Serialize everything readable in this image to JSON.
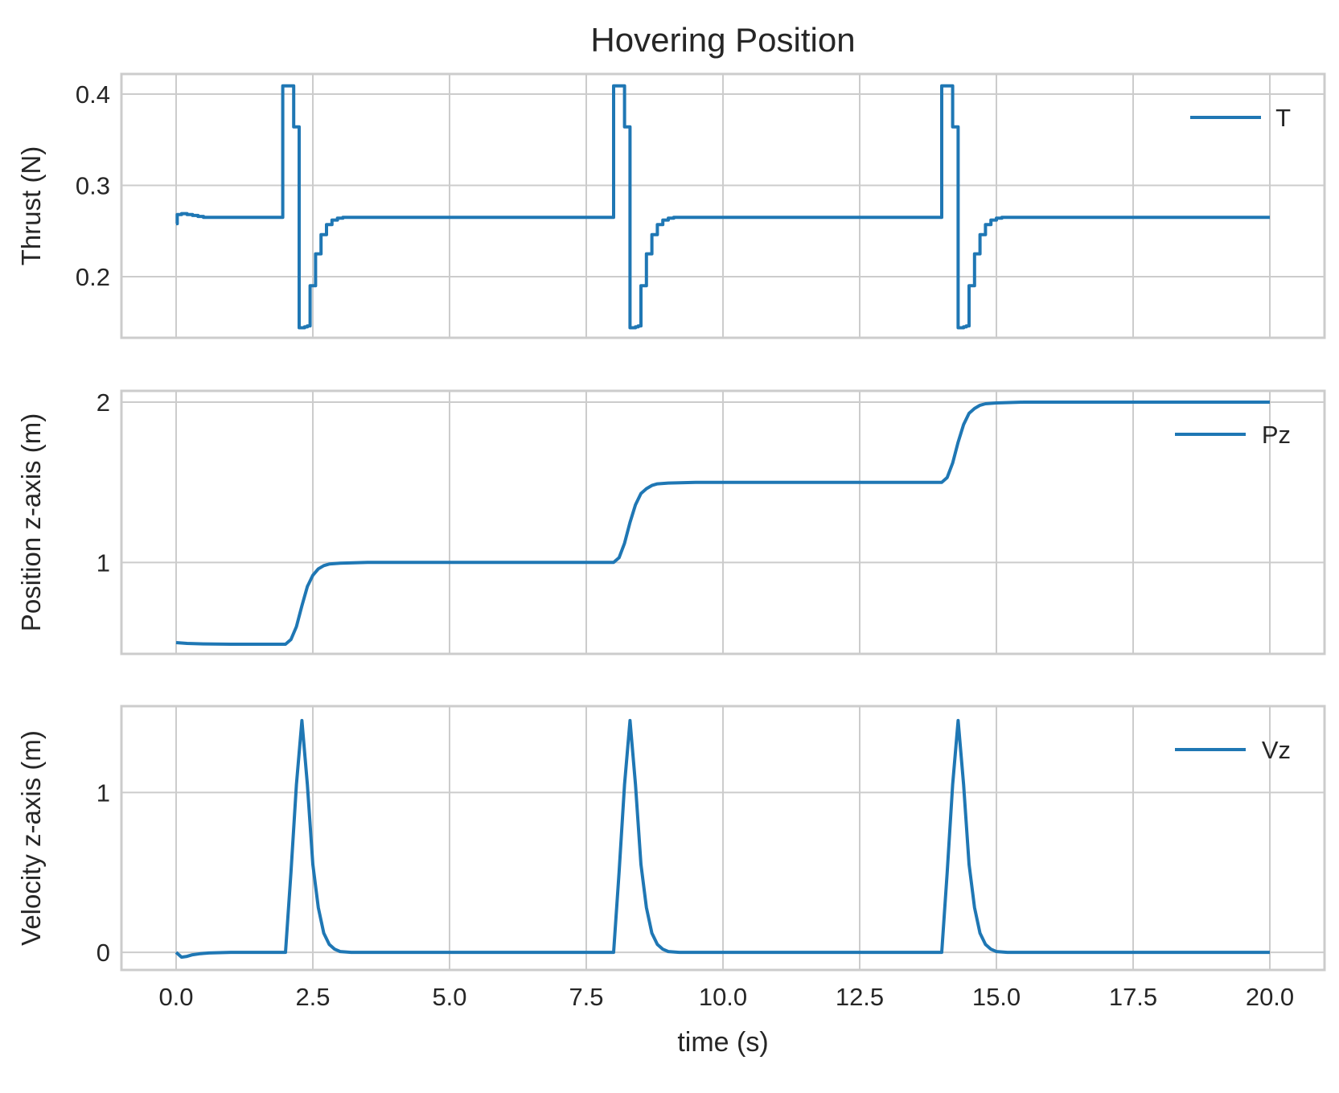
{
  "figure_title": "Hovering Position",
  "colors": {
    "line": "#1f77b4",
    "grid": "#cccccc",
    "frame": "#cccccc",
    "text": "#262626"
  },
  "chart_data": [
    {
      "type": "line",
      "id": "thrust",
      "ylabel": "Thrust (N)",
      "xlim": [
        -1.0,
        21.0
      ],
      "ylim": [
        0.133,
        0.422
      ],
      "yticks": [
        {
          "v": 0.2,
          "label": "0.2"
        },
        {
          "v": 0.3,
          "label": "0.3"
        },
        {
          "v": 0.4,
          "label": "0.4"
        }
      ],
      "xticks": [
        {
          "v": 0.0
        },
        {
          "v": 2.5
        },
        {
          "v": 5.0
        },
        {
          "v": 7.5
        },
        {
          "v": 10.0
        },
        {
          "v": 12.5
        },
        {
          "v": 15.0
        },
        {
          "v": 17.5
        },
        {
          "v": 20.0
        }
      ],
      "legend": "top-right",
      "grid": true,
      "series": [
        {
          "name": "T",
          "step": true,
          "x": [
            0.0,
            0.02,
            0.1,
            0.2,
            0.3,
            0.4,
            0.5,
            1.9,
            1.95,
            2.05,
            2.15,
            2.2,
            2.25,
            2.3,
            2.35,
            2.4,
            2.45,
            2.55,
            2.65,
            2.75,
            2.85,
            2.95,
            3.05,
            3.15,
            3.25,
            7.95,
            8.0,
            8.1,
            8.2,
            8.25,
            8.3,
            8.35,
            8.4,
            8.45,
            8.5,
            8.6,
            8.7,
            8.8,
            8.9,
            9.0,
            9.1,
            9.2,
            9.3,
            13.95,
            14.0,
            14.1,
            14.2,
            14.25,
            14.3,
            14.35,
            14.4,
            14.45,
            14.5,
            14.6,
            14.7,
            14.8,
            14.9,
            15.0,
            15.1,
            15.2,
            15.3,
            20.0
          ],
          "y": [
            0.258,
            0.268,
            0.269,
            0.268,
            0.267,
            0.266,
            0.265,
            0.265,
            0.409,
            0.409,
            0.364,
            0.364,
            0.144,
            0.144,
            0.145,
            0.146,
            0.19,
            0.225,
            0.246,
            0.257,
            0.262,
            0.264,
            0.265,
            0.265,
            0.265,
            0.265,
            0.409,
            0.409,
            0.364,
            0.364,
            0.144,
            0.144,
            0.145,
            0.146,
            0.19,
            0.225,
            0.246,
            0.257,
            0.262,
            0.264,
            0.265,
            0.265,
            0.265,
            0.265,
            0.409,
            0.409,
            0.364,
            0.364,
            0.144,
            0.144,
            0.145,
            0.146,
            0.19,
            0.225,
            0.246,
            0.257,
            0.262,
            0.264,
            0.265,
            0.265,
            0.265,
            0.265
          ]
        }
      ]
    },
    {
      "type": "line",
      "id": "position",
      "ylabel": "Position z-axis (m)",
      "xlim": [
        -1.0,
        21.0
      ],
      "ylim": [
        0.43,
        2.07
      ],
      "yticks": [
        {
          "v": 1,
          "label": "1"
        },
        {
          "v": 2,
          "label": "2"
        }
      ],
      "xticks": [
        {
          "v": 0.0
        },
        {
          "v": 2.5
        },
        {
          "v": 5.0
        },
        {
          "v": 7.5
        },
        {
          "v": 10.0
        },
        {
          "v": 12.5
        },
        {
          "v": 15.0
        },
        {
          "v": 17.5
        },
        {
          "v": 20.0
        }
      ],
      "legend": "top-right",
      "grid": true,
      "series": [
        {
          "name": "Pz",
          "step": false,
          "x": [
            0.0,
            0.2,
            0.5,
            1.0,
            1.5,
            2.0,
            2.1,
            2.2,
            2.3,
            2.4,
            2.5,
            2.6,
            2.7,
            2.8,
            3.0,
            3.5,
            8.0,
            8.1,
            8.2,
            8.3,
            8.4,
            8.5,
            8.6,
            8.7,
            8.8,
            9.0,
            9.5,
            14.0,
            14.1,
            14.2,
            14.3,
            14.4,
            14.5,
            14.6,
            14.7,
            14.8,
            15.0,
            15.5,
            20.0
          ],
          "y": [
            0.5,
            0.495,
            0.492,
            0.49,
            0.49,
            0.49,
            0.52,
            0.6,
            0.73,
            0.85,
            0.92,
            0.96,
            0.98,
            0.99,
            0.995,
            1.0,
            1.0,
            1.03,
            1.12,
            1.25,
            1.36,
            1.43,
            1.46,
            1.48,
            1.49,
            1.495,
            1.5,
            1.5,
            1.53,
            1.62,
            1.75,
            1.86,
            1.93,
            1.96,
            1.98,
            1.99,
            1.995,
            2.0,
            2.0
          ]
        }
      ]
    },
    {
      "type": "line",
      "id": "velocity",
      "ylabel": "Velocity z-axis (m)",
      "xlabel": "time (s)",
      "xlim": [
        -1.0,
        21.0
      ],
      "ylim": [
        -0.11,
        1.54
      ],
      "yticks": [
        {
          "v": 0,
          "label": "0"
        },
        {
          "v": 1,
          "label": "1"
        }
      ],
      "xticks": [
        {
          "v": 0.0,
          "label": "0.0"
        },
        {
          "v": 2.5,
          "label": "2.5"
        },
        {
          "v": 5.0,
          "label": "5.0"
        },
        {
          "v": 7.5,
          "label": "7.5"
        },
        {
          "v": 10.0,
          "label": "10.0"
        },
        {
          "v": 12.5,
          "label": "12.5"
        },
        {
          "v": 15.0,
          "label": "15.0"
        },
        {
          "v": 17.5,
          "label": "17.5"
        },
        {
          "v": 20.0,
          "label": "20.0"
        }
      ],
      "legend": "top-right",
      "grid": true,
      "series": [
        {
          "name": "Vz",
          "step": false,
          "x": [
            0.0,
            0.1,
            0.2,
            0.3,
            0.45,
            0.6,
            0.8,
            1.0,
            1.5,
            2.0,
            2.1,
            2.2,
            2.3,
            2.4,
            2.5,
            2.6,
            2.7,
            2.8,
            2.9,
            3.0,
            3.2,
            3.5,
            8.0,
            8.1,
            8.2,
            8.3,
            8.4,
            8.5,
            8.6,
            8.7,
            8.8,
            8.9,
            9.0,
            9.2,
            9.5,
            14.0,
            14.1,
            14.2,
            14.3,
            14.4,
            14.5,
            14.6,
            14.7,
            14.8,
            14.9,
            15.0,
            15.2,
            15.5,
            20.0
          ],
          "y": [
            0.0,
            -0.03,
            -0.025,
            -0.015,
            -0.008,
            -0.004,
            -0.002,
            0.0,
            0.0,
            0.0,
            0.5,
            1.05,
            1.45,
            1.05,
            0.55,
            0.28,
            0.12,
            0.05,
            0.02,
            0.005,
            0.0,
            0.0,
            0.0,
            0.5,
            1.05,
            1.45,
            1.05,
            0.55,
            0.28,
            0.12,
            0.05,
            0.02,
            0.005,
            0.0,
            0.0,
            0.0,
            0.5,
            1.05,
            1.45,
            1.05,
            0.55,
            0.28,
            0.12,
            0.05,
            0.02,
            0.005,
            0.0,
            0.0,
            0.0
          ]
        }
      ]
    }
  ]
}
